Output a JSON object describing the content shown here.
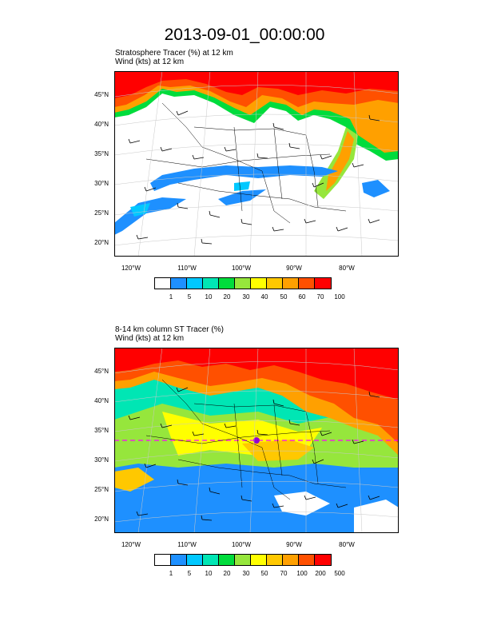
{
  "title": "2013-09-01_00:00:00",
  "panels": [
    {
      "line1": "Stratosphere Tracer   (%)     at   12 km",
      "line2": "Wind   (kts)     at   12 km",
      "lat_labels": [
        "45°N",
        "40°N",
        "35°N",
        "30°N",
        "25°N",
        "20°N"
      ],
      "lon_labels": [
        "120°W",
        "110°W",
        "100°W",
        "90°W",
        "80°W"
      ],
      "colorbar_labels": [
        "1",
        "5",
        "10",
        "20",
        "30",
        "40",
        "50",
        "60",
        "70",
        "100"
      ]
    },
    {
      "line1": "8-14 km column ST Tracer   (%)",
      "line2": "Wind   (kts)     at   12 km",
      "lat_labels": [
        "45°N",
        "40°N",
        "35°N",
        "30°N",
        "25°N",
        "20°N"
      ],
      "lon_labels": [
        "120°W",
        "110°W",
        "100°W",
        "90°W",
        "80°W"
      ],
      "colorbar_labels": [
        "1",
        "5",
        "10",
        "20",
        "30",
        "50",
        "70",
        "100",
        "200",
        "500"
      ]
    }
  ],
  "colorbar_colors": [
    "#ffffff",
    "#1e90ff",
    "#00c8ff",
    "#00e6b4",
    "#00dc3c",
    "#96e63c",
    "#ffff00",
    "#ffc800",
    "#ffa000",
    "#ff5000",
    "#ff0000"
  ]
}
